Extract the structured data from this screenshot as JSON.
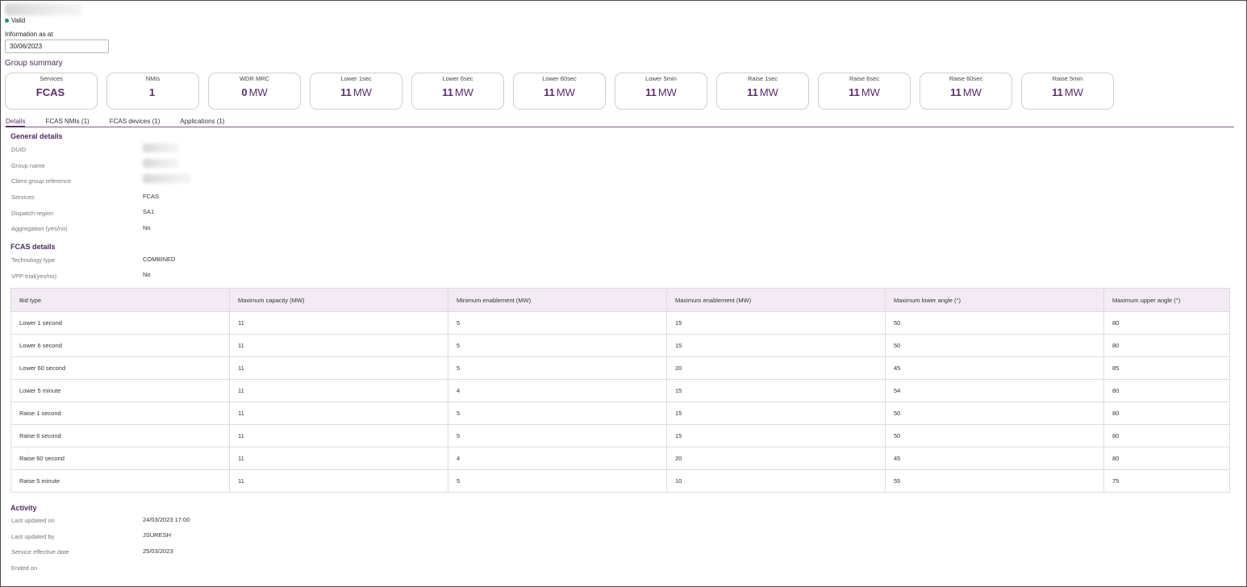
{
  "header": {
    "status": "Valid",
    "status_color": "#1a8a6e",
    "info_label": "Information as at",
    "info_date": "30/06/2023"
  },
  "group_summary": {
    "title": "Group summary",
    "cards": [
      {
        "label": "Services",
        "value": "FCAS",
        "unit": ""
      },
      {
        "label": "NMIs",
        "value": "1",
        "unit": ""
      },
      {
        "label": "WDR MRC",
        "value": "0",
        "unit": "MW"
      },
      {
        "label": "Lower 1sec",
        "value": "11",
        "unit": "MW"
      },
      {
        "label": "Lower 6sec",
        "value": "11",
        "unit": "MW"
      },
      {
        "label": "Lower 60sec",
        "value": "11",
        "unit": "MW"
      },
      {
        "label": "Lower 5min",
        "value": "11",
        "unit": "MW"
      },
      {
        "label": "Raise 1sec",
        "value": "11",
        "unit": "MW"
      },
      {
        "label": "Raise 6sec",
        "value": "11",
        "unit": "MW"
      },
      {
        "label": "Raise 60sec",
        "value": "11",
        "unit": "MW"
      },
      {
        "label": "Raise 5min",
        "value": "11",
        "unit": "MW"
      }
    ]
  },
  "tabs": [
    {
      "label": "Details",
      "active": true
    },
    {
      "label": "FCAS NMIs (1)",
      "active": false
    },
    {
      "label": "FCAS devices (1)",
      "active": false
    },
    {
      "label": "Applications (1)",
      "active": false
    }
  ],
  "general_details": {
    "title": "General details",
    "rows": [
      {
        "label": "DUID",
        "value": ""
      },
      {
        "label": "Group name",
        "value": ""
      },
      {
        "label": "Client group reference",
        "value": ""
      },
      {
        "label": "Services",
        "value": "FCAS"
      },
      {
        "label": "Dispatch region",
        "value": "SA1"
      },
      {
        "label": "Aggregation (yes/no)",
        "value": "No"
      }
    ]
  },
  "fcas_details": {
    "title": "FCAS details",
    "rows": [
      {
        "label": "Technology type",
        "value": "COMBINED"
      },
      {
        "label": "VPP trial(yes/no)",
        "value": "No"
      }
    ]
  },
  "bid_table": {
    "headers": [
      "Bid type",
      "Maximum capacity (MW)",
      "Minimum enablement (MW)",
      "Maximum enablement (MW)",
      "Maximum lower angle (°)",
      "Maximum upper angle (°)"
    ],
    "rows": [
      [
        "Lower 1 second",
        "11",
        "5",
        "15",
        "50",
        "80"
      ],
      [
        "Lower 6 second",
        "11",
        "5",
        "15",
        "50",
        "80"
      ],
      [
        "Lower 60 second",
        "11",
        "5",
        "20",
        "45",
        "85"
      ],
      [
        "Lower 5 minute",
        "11",
        "4",
        "15",
        "54",
        "80"
      ],
      [
        "Raise 1 second",
        "11",
        "5",
        "15",
        "50",
        "80"
      ],
      [
        "Raise 6 second",
        "11",
        "5",
        "15",
        "50",
        "80"
      ],
      [
        "Raise 60 second",
        "11",
        "4",
        "20",
        "45",
        "80"
      ],
      [
        "Raise 5 minute",
        "11",
        "5",
        "10",
        "55",
        "75"
      ]
    ]
  },
  "activity": {
    "title": "Activity",
    "rows": [
      {
        "label": "Last updated on",
        "value": "24/03/2023 17:00"
      },
      {
        "label": "Last updated by",
        "value": "JSURESH"
      },
      {
        "label": "Service effective date",
        "value": "25/03/2023"
      },
      {
        "label": "Ended on",
        "value": ""
      }
    ]
  },
  "colors": {
    "accent": "#5b2d6e",
    "header_bg": "#f3ebf3"
  }
}
